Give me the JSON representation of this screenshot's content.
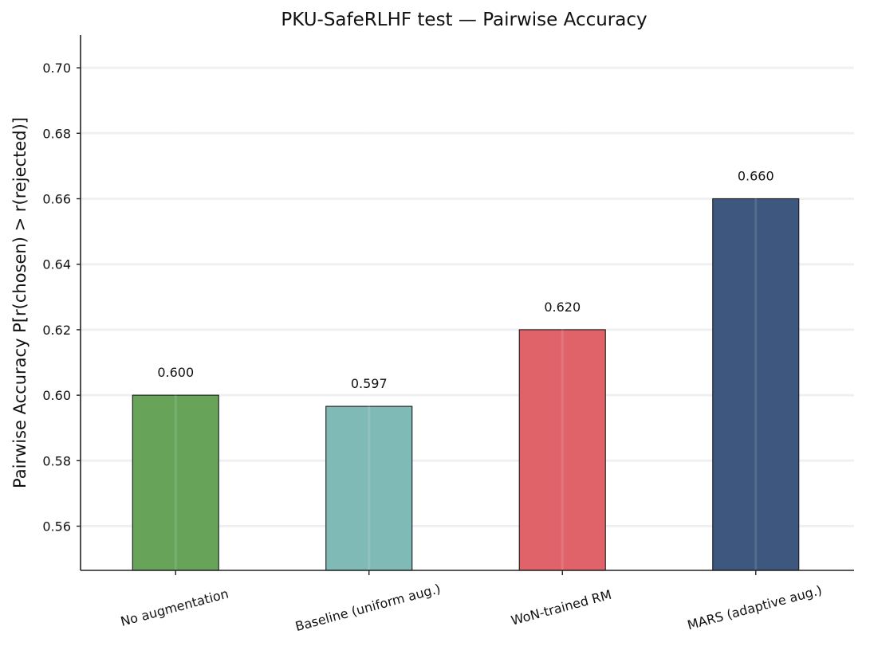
{
  "chart_data": {
    "type": "bar",
    "title": "PKU-SafeRLHF test — Pairwise Accuracy",
    "xlabel": "",
    "ylabel": "Pairwise Accuracy  P[r(chosen) > r(rejected)]",
    "categories": [
      "No augmentation",
      "Baseline (uniform aug.)",
      "WoN-trained RM",
      "MARS (adaptive aug.)"
    ],
    "values": [
      0.6,
      0.5966,
      0.62,
      0.66
    ],
    "data_labels": [
      "0.600",
      "0.597",
      "0.620",
      "0.660"
    ],
    "colors": [
      "#67a45a",
      "#80bab7",
      "#e0636a",
      "#3e577f"
    ],
    "ylim": [
      0.5465,
      0.71
    ],
    "yticks": [
      0.56,
      0.58,
      0.6,
      0.62,
      0.64,
      0.66,
      0.68,
      0.7
    ],
    "ytick_labels": [
      "0.56",
      "0.58",
      "0.60",
      "0.62",
      "0.64",
      "0.66",
      "0.68",
      "0.70"
    ],
    "grid": true,
    "legend": "none"
  }
}
